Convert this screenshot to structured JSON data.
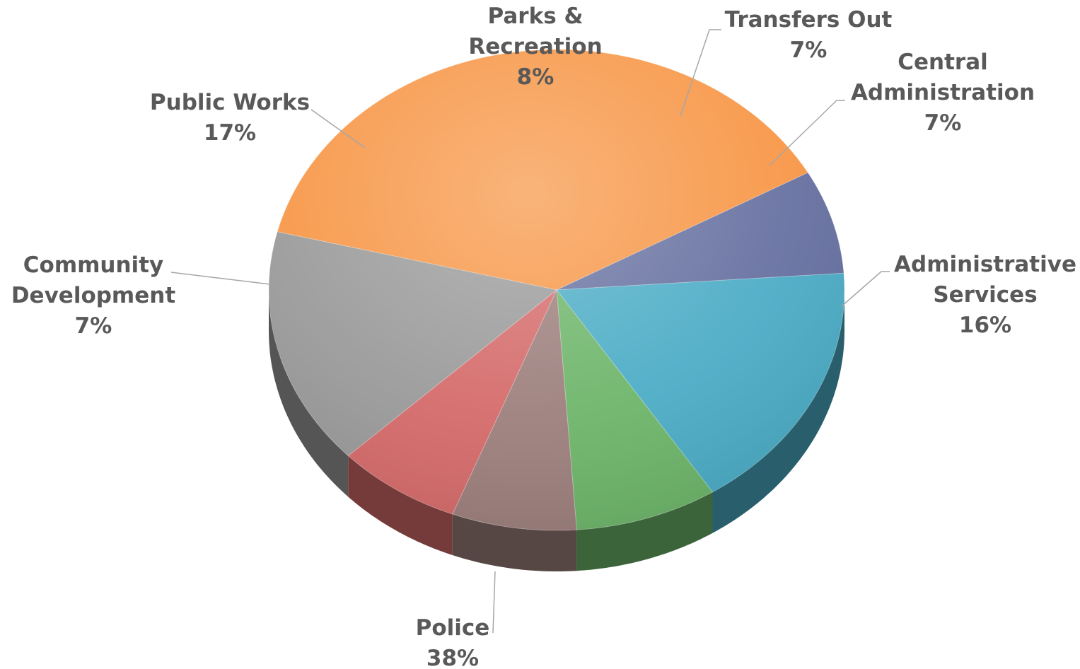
{
  "chart_data": {
    "type": "pie",
    "style": "3d",
    "title": "",
    "slices": [
      {
        "label_lines": [
          "Police"
        ],
        "percent_label": "38%",
        "value": 38,
        "color": "#F79646"
      },
      {
        "label_lines": [
          "Community",
          "Development"
        ],
        "percent_label": "7%",
        "value": 7,
        "color": "#6670A0"
      },
      {
        "label_lines": [
          "Public Works"
        ],
        "percent_label": "17%",
        "value": 17,
        "color": "#4BACC6"
      },
      {
        "label_lines": [
          "Parks &",
          "Recreation"
        ],
        "percent_label": "8%",
        "value": 8,
        "color": "#6DB56A"
      },
      {
        "label_lines": [
          "Transfers Out"
        ],
        "percent_label": "7%",
        "value": 7,
        "color": "#9C7F7C"
      },
      {
        "label_lines": [
          "Central",
          "Administration"
        ],
        "percent_label": "7%",
        "value": 7,
        "color": "#D56A6A"
      },
      {
        "label_lines": [
          "Administrative",
          "Services"
        ],
        "percent_label": "16%",
        "value": 16,
        "color": "#9A9A9A"
      }
    ]
  }
}
